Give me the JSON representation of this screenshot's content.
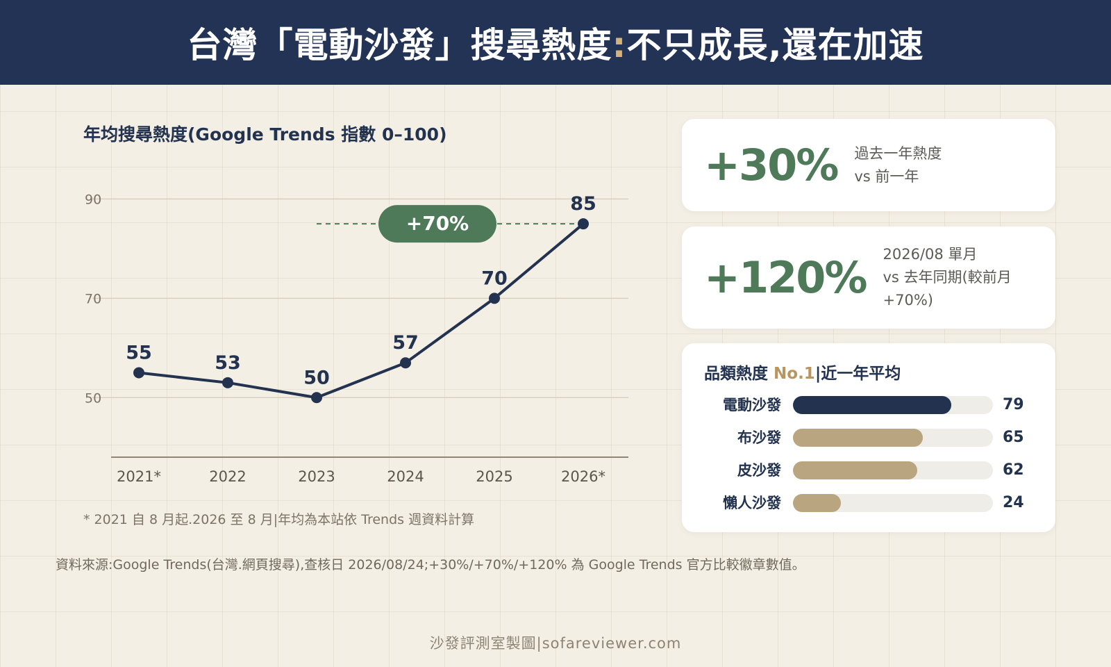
{
  "header": {
    "title_part1": "台灣「電動沙發」搜尋熱度",
    "title_colon": ":",
    "title_part2": "不只成長,還在加速"
  },
  "chart_data": {
    "type": "line",
    "title": "年均搜尋熱度(Google Trends 指數 0–100)",
    "categories": [
      "2021*",
      "2022",
      "2023",
      "2024",
      "2025",
      "2026*"
    ],
    "values": [
      55,
      53,
      50,
      57,
      70,
      85
    ],
    "data_labels": [
      "55",
      "53",
      "50",
      "57",
      "70",
      "85"
    ],
    "yticks": [
      "50",
      "70",
      "90"
    ],
    "ylim": [
      38,
      93
    ],
    "grid": true,
    "annotation": {
      "label": "+70%",
      "from_category": "2023",
      "to_category": "2026*",
      "level": 85
    },
    "line_color": "#22324f",
    "annotation_color": "#4e7a59"
  },
  "footnote": "* 2021 自 8 月起.2026 至 8 月|年均為本站依 Trends 週資料計算",
  "stats": [
    {
      "value": "+30%",
      "desc": [
        "過去一年熱度",
        "vs 前一年"
      ]
    },
    {
      "value": "+120%",
      "desc": [
        "2026/08 單月",
        "vs 去年同期(較前月",
        "+70%)"
      ]
    }
  ],
  "ranking": {
    "title_part1": "品類熱度 ",
    "title_highlight": "No.1",
    "title_part2": "|近一年平均",
    "max": 100,
    "items": [
      {
        "label": "電動沙發",
        "value": 79,
        "color": "#22324f"
      },
      {
        "label": "布沙發",
        "value": 65,
        "color": "#b9a57f"
      },
      {
        "label": "皮沙發",
        "value": 62,
        "color": "#b9a57f"
      },
      {
        "label": "懶人沙發",
        "value": 24,
        "color": "#b9a57f"
      }
    ]
  },
  "source": "資料來源:Google Trends(台灣.網頁搜尋),查核日 2026/08/24;+30%/+70%/+120% 為 Google Trends 官方比較徽章數值。",
  "credit": "沙發評測室製圖|sofareviewer.com"
}
